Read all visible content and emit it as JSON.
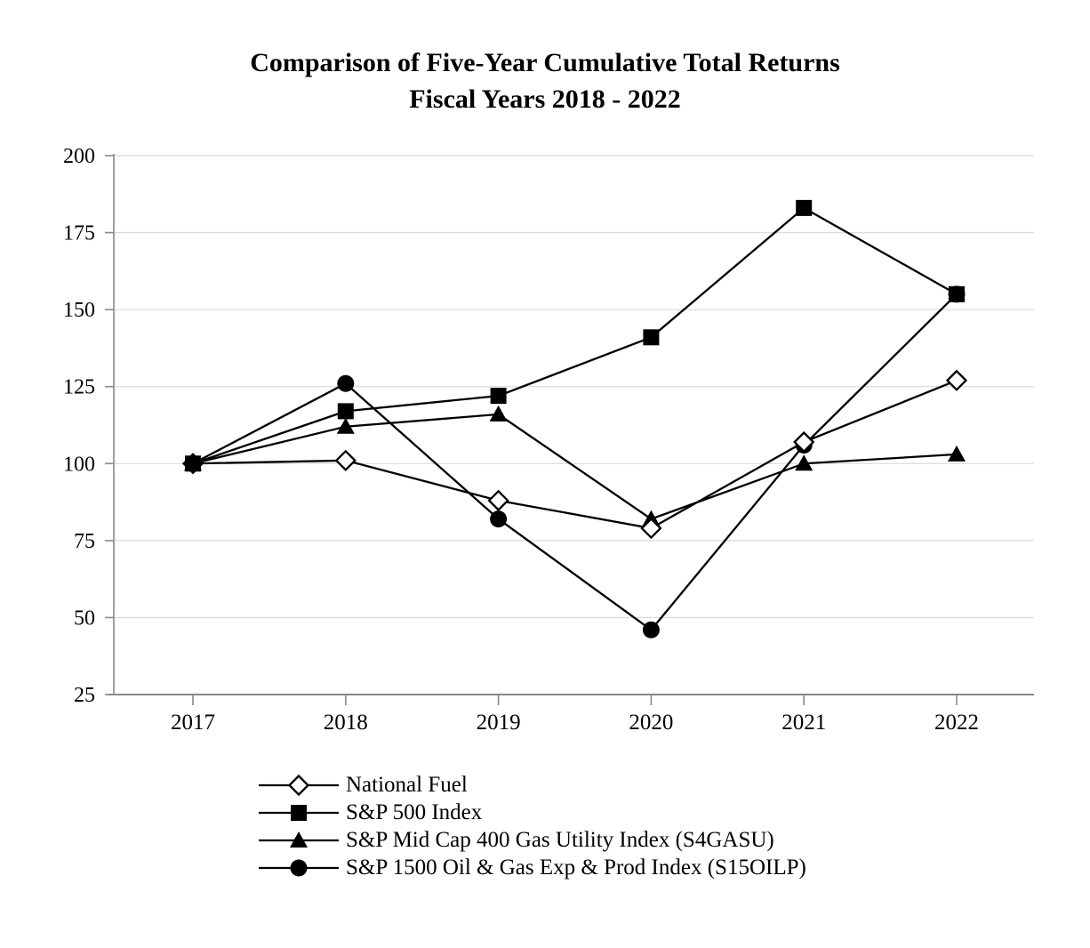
{
  "chart_data": {
    "type": "line",
    "title": "Comparison of Five-Year Cumulative Total Returns",
    "subtitle": "Fiscal Years 2018 - 2022",
    "categories": [
      "2017",
      "2018",
      "2019",
      "2020",
      "2021",
      "2022"
    ],
    "y_ticks": [
      25,
      50,
      75,
      100,
      125,
      150,
      175,
      200
    ],
    "ylim": [
      25,
      200
    ],
    "grid": true,
    "legend_position": "bottom-left",
    "colors": {
      "series": "#000000",
      "axis": "#898989",
      "gridline": "#dcdcdc",
      "text": "#000000",
      "background": "#ffffff"
    },
    "series": [
      {
        "name": "National Fuel",
        "marker": "diamond-open",
        "values": [
          100,
          101,
          88,
          79,
          107,
          127
        ]
      },
      {
        "name": "S&P 500 Index",
        "marker": "square-filled",
        "values": [
          100,
          117,
          122,
          141,
          183,
          155
        ]
      },
      {
        "name": "S&P Mid Cap 400 Gas Utility Index (S4GASU)",
        "marker": "triangle-filled",
        "values": [
          100,
          112,
          116,
          82,
          100,
          103
        ]
      },
      {
        "name": "S&P 1500 Oil & Gas Exp & Prod Index (S15OILP)",
        "marker": "circle-filled",
        "values": [
          100,
          126,
          82,
          46,
          106,
          155
        ]
      }
    ],
    "draw_order": [
      3,
      2,
      0,
      1
    ]
  }
}
